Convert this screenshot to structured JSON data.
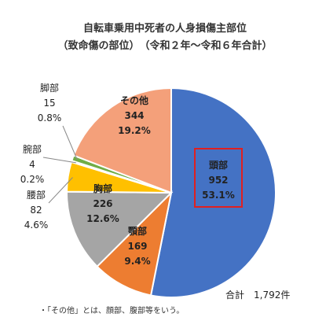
{
  "chart_data": {
    "type": "pie",
    "title": "自転車乗用中死者の人身損傷主部位",
    "subtitle": "（致命傷の部位）　（令和２年～令和６年合計）",
    "total_label": "合計　1,792件",
    "slices": [
      {
        "name": "頭部",
        "value": 952,
        "pct": "53.1%",
        "color": "#4472C4"
      },
      {
        "name": "顎部",
        "value": 169,
        "pct": "9.4%",
        "color": "#ED7D31"
      },
      {
        "name": "胸部",
        "value": 226,
        "pct": "12.6%",
        "color": "#A5A5A5"
      },
      {
        "name": "腰部",
        "value": 82,
        "pct": "4.6%",
        "color": "#FFC000"
      },
      {
        "name": "腕部",
        "value": 4,
        "pct": "0.2%",
        "color": "#5B9BD5"
      },
      {
        "name": "脚部",
        "value": 15,
        "pct": "0.8%",
        "color": "#70AD47"
      },
      {
        "name": "その他",
        "value": 344,
        "pct": "19.2%",
        "color": "#F4A07A"
      }
    ],
    "highlight": "頭部",
    "highlight_color": "#E02020"
  },
  "footnote": "・「その他」とは、顔部、腹部等をいう。"
}
